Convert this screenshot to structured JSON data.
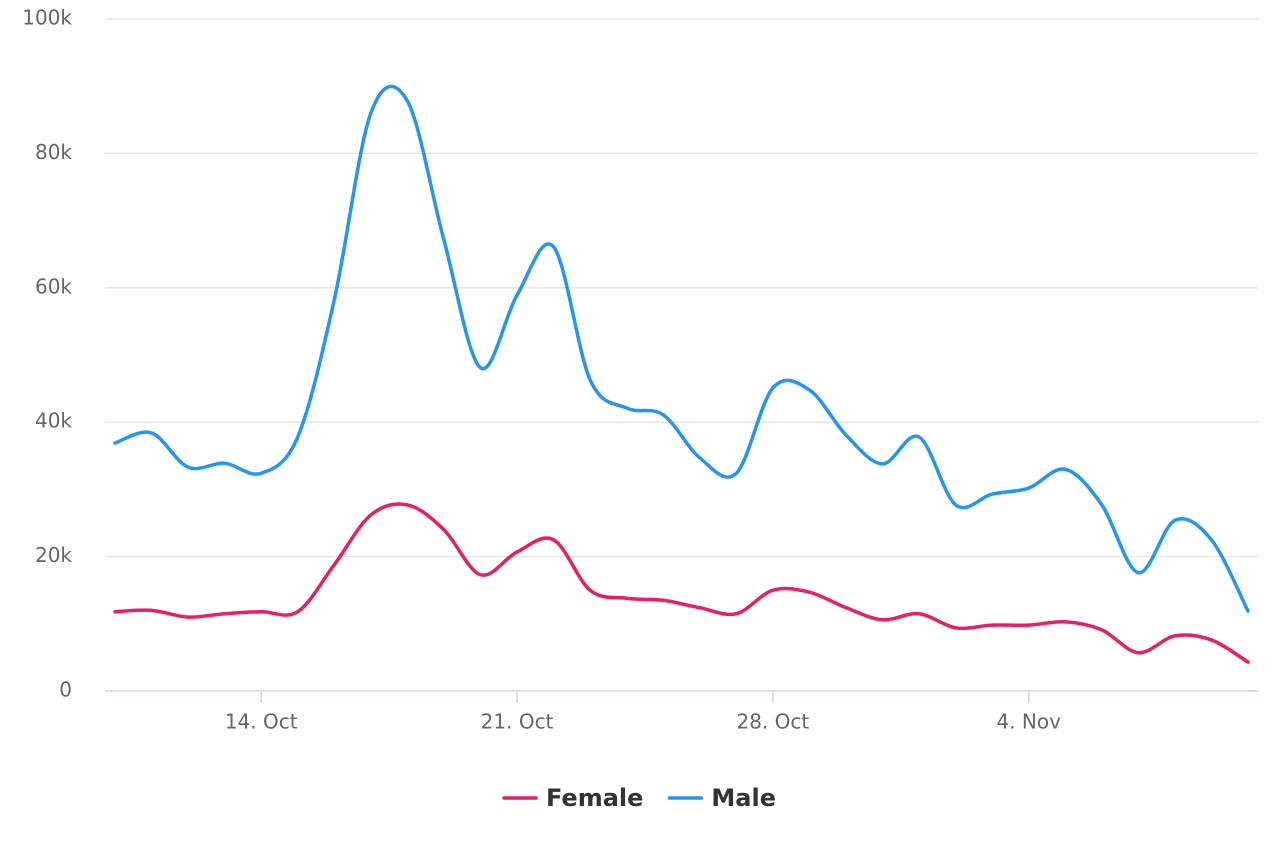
{
  "chart_data": {
    "type": "line",
    "categories": [
      null,
      null,
      null,
      null,
      "14. Oct",
      null,
      null,
      null,
      null,
      null,
      null,
      "21. Oct",
      null,
      null,
      null,
      null,
      null,
      null,
      "28. Oct",
      null,
      null,
      null,
      null,
      null,
      null,
      "4. Nov",
      null,
      null,
      null,
      null,
      null,
      null
    ],
    "series": [
      {
        "name": "Female",
        "color": "#e91e63",
        "values": [
          11800,
          12000,
          11000,
          11500,
          11800,
          11800,
          18800,
          26200,
          27700,
          24000,
          17300,
          20700,
          22500,
          15000,
          13800,
          13500,
          12400,
          11500,
          15000,
          14700,
          12400,
          10600,
          11500,
          9400,
          9800,
          9800,
          10300,
          9100,
          5700,
          8200,
          7600,
          4300
        ]
      },
      {
        "name": "Male",
        "color": "#2196f3",
        "values": [
          36900,
          38400,
          33300,
          33900,
          32400,
          37800,
          58200,
          86000,
          87800,
          67100,
          48100,
          58900,
          66100,
          46300,
          42100,
          41100,
          34700,
          32400,
          45100,
          44800,
          38100,
          33800,
          37800,
          27700,
          29300,
          30200,
          33000,
          27700,
          17600,
          25400,
          22500,
          11900
        ]
      }
    ],
    "ylim": [
      0,
      100000
    ],
    "yticks": [
      0,
      {
        "value": 20000,
        "label": "20k"
      },
      {
        "value": 40000,
        "label": "40k"
      },
      {
        "value": 60000,
        "label": "60k"
      },
      {
        "value": 80000,
        "label": "80k"
      },
      {
        "value": 100000,
        "label": "100k"
      }
    ],
    "grid": true
  }
}
